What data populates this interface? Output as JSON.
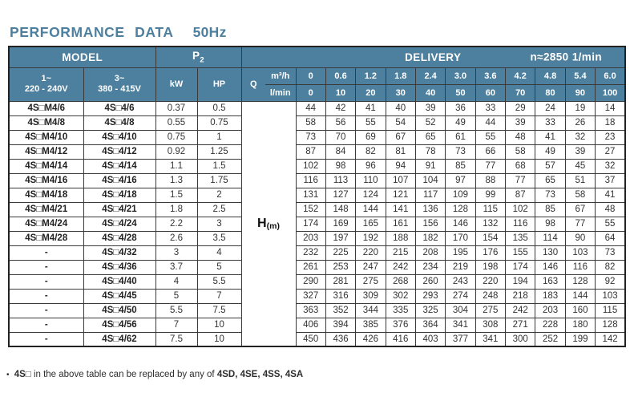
{
  "title": "PERFORMANCE DATA",
  "frequency": "50Hz",
  "colors": {
    "header_bg": "#4d7f9e",
    "header_text": "#ffffff",
    "title_text": "#4d7f9e",
    "body_text": "#333333",
    "grid_line": "#3a3a3a"
  },
  "table": {
    "header": {
      "model": "MODEL",
      "p2_label": "P",
      "p2_sub": "2",
      "delivery": "DELIVERY",
      "speed": "n≈2850 1/min",
      "phase1": "1~",
      "phase1_voltage": "220 - 240V",
      "phase3": "3~",
      "phase3_voltage": "380 - 415V",
      "kw": "kW",
      "hp": "HP",
      "q": "Q",
      "unit_m3h": "m³/h",
      "unit_lmin": "l/min",
      "flow_m3h": [
        "0",
        "0.6",
        "1.2",
        "1.8",
        "2.4",
        "3.0",
        "3.6",
        "4.2",
        "4.8",
        "5.4",
        "6.0"
      ],
      "flow_lmin": [
        "0",
        "10",
        "20",
        "30",
        "40",
        "50",
        "60",
        "70",
        "80",
        "90",
        "100"
      ],
      "head_label": "H",
      "head_unit": "(m)"
    },
    "rows": [
      {
        "model_1ph": "4S□M4/6",
        "model_3ph": "4S□4/6",
        "kw": "0.37",
        "hp": "0.5",
        "head_m": [
          44,
          42,
          41,
          40,
          39,
          36,
          33,
          29,
          24,
          19,
          14
        ]
      },
      {
        "model_1ph": "4S□M4/8",
        "model_3ph": "4S□4/8",
        "kw": "0.55",
        "hp": "0.75",
        "head_m": [
          58,
          56,
          55,
          54,
          52,
          49,
          44,
          39,
          33,
          26,
          18
        ]
      },
      {
        "model_1ph": "4S□M4/10",
        "model_3ph": "4S□4/10",
        "kw": "0.75",
        "hp": "1",
        "head_m": [
          73,
          70,
          69,
          67,
          65,
          61,
          55,
          48,
          41,
          32,
          23
        ]
      },
      {
        "model_1ph": "4S□M4/12",
        "model_3ph": "4S□4/12",
        "kw": "0.92",
        "hp": "1.25",
        "head_m": [
          87,
          84,
          82,
          81,
          78,
          73,
          66,
          58,
          49,
          39,
          27
        ]
      },
      {
        "model_1ph": "4S□M4/14",
        "model_3ph": "4S□4/14",
        "kw": "1.1",
        "hp": "1.5",
        "head_m": [
          102,
          98,
          96,
          94,
          91,
          85,
          77,
          68,
          57,
          45,
          32
        ]
      },
      {
        "model_1ph": "4S□M4/16",
        "model_3ph": "4S□4/16",
        "kw": "1.3",
        "hp": "1.75",
        "head_m": [
          116,
          113,
          110,
          107,
          104,
          97,
          88,
          77,
          65,
          51,
          37
        ]
      },
      {
        "model_1ph": "4S□M4/18",
        "model_3ph": "4S□4/18",
        "kw": "1.5",
        "hp": "2",
        "head_m": [
          131,
          127,
          124,
          121,
          117,
          109,
          99,
          87,
          73,
          58,
          41
        ]
      },
      {
        "model_1ph": "4S□M4/21",
        "model_3ph": "4S□4/21",
        "kw": "1.8",
        "hp": "2.5",
        "head_m": [
          152,
          148,
          144,
          141,
          136,
          128,
          115,
          102,
          85,
          67,
          48
        ]
      },
      {
        "model_1ph": "4S□M4/24",
        "model_3ph": "4S□4/24",
        "kw": "2.2",
        "hp": "3",
        "head_m": [
          174,
          169,
          165,
          161,
          156,
          146,
          132,
          116,
          98,
          77,
          55
        ]
      },
      {
        "model_1ph": "4S□M4/28",
        "model_3ph": "4S□4/28",
        "kw": "2.6",
        "hp": "3.5",
        "head_m": [
          203,
          197,
          192,
          188,
          182,
          170,
          154,
          135,
          114,
          90,
          64
        ]
      },
      {
        "model_1ph": "-",
        "model_3ph": "4S□4/32",
        "kw": "3",
        "hp": "4",
        "head_m": [
          232,
          225,
          220,
          215,
          208,
          195,
          176,
          155,
          130,
          103,
          73
        ]
      },
      {
        "model_1ph": "-",
        "model_3ph": "4S□4/36",
        "kw": "3.7",
        "hp": "5",
        "head_m": [
          261,
          253,
          247,
          242,
          234,
          219,
          198,
          174,
          146,
          116,
          82
        ]
      },
      {
        "model_1ph": "-",
        "model_3ph": "4S□4/40",
        "kw": "4",
        "hp": "5.5",
        "head_m": [
          290,
          281,
          275,
          268,
          260,
          243,
          220,
          194,
          163,
          128,
          92
        ]
      },
      {
        "model_1ph": "-",
        "model_3ph": "4S□4/45",
        "kw": "5",
        "hp": "7",
        "head_m": [
          327,
          316,
          309,
          302,
          293,
          274,
          248,
          218,
          183,
          144,
          103
        ]
      },
      {
        "model_1ph": "-",
        "model_3ph": "4S□4/50",
        "kw": "5.5",
        "hp": "7.5",
        "head_m": [
          363,
          352,
          344,
          335,
          325,
          304,
          275,
          242,
          203,
          160,
          115
        ]
      },
      {
        "model_1ph": "-",
        "model_3ph": "4S□4/56",
        "kw": "7",
        "hp": "10",
        "head_m": [
          406,
          394,
          385,
          376,
          364,
          341,
          308,
          271,
          228,
          180,
          128
        ]
      },
      {
        "model_1ph": "-",
        "model_3ph": "4S□4/62",
        "kw": "7.5",
        "hp": "10",
        "head_m": [
          450,
          436,
          426,
          416,
          403,
          377,
          341,
          300,
          252,
          199,
          142
        ]
      }
    ]
  },
  "footnote": {
    "bullet": "•",
    "model_code": "4S□",
    "text": "in the above table can be replaced by any of",
    "models_bold": "4SD, 4SE, 4SS, 4SA"
  }
}
